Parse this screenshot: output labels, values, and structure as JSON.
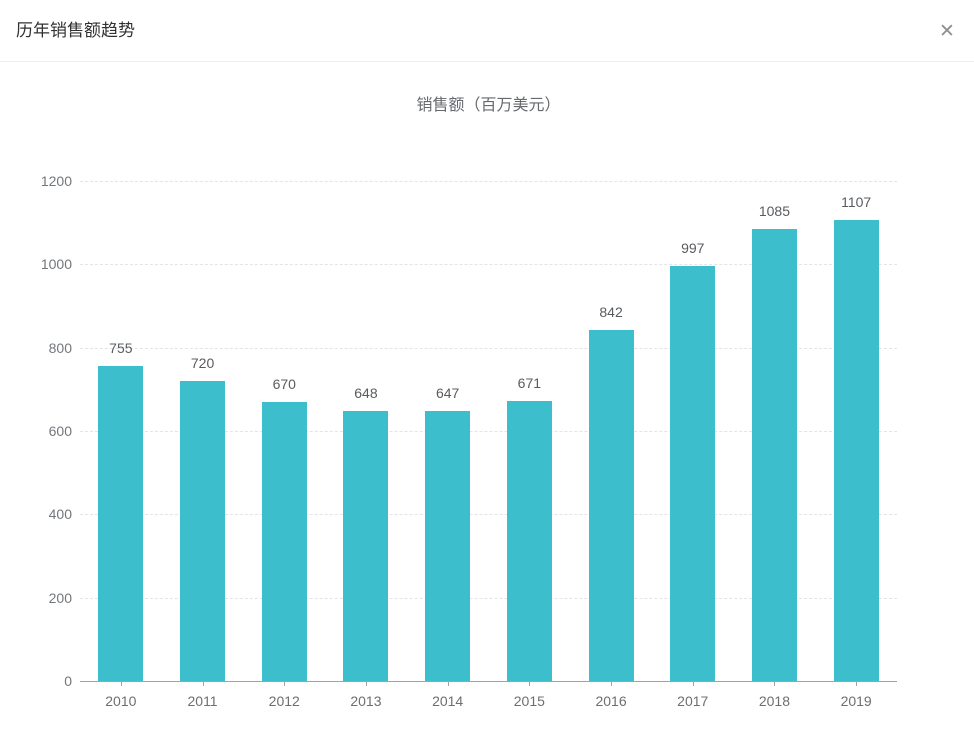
{
  "window": {
    "title": "历年销售额趋势",
    "close_icon": "✕"
  },
  "chart_data": {
    "type": "bar",
    "title": "销售额（百万美元）",
    "categories": [
      "2010",
      "2011",
      "2012",
      "2013",
      "2014",
      "2015",
      "2016",
      "2017",
      "2018",
      "2019"
    ],
    "values": [
      755,
      720,
      670,
      648,
      647,
      671,
      842,
      997,
      1085,
      1107
    ],
    "xlabel": "",
    "ylabel": "",
    "ylim": [
      0,
      1200
    ],
    "yticks": [
      0,
      200,
      400,
      600,
      800,
      1000,
      1200
    ],
    "grid": "horizontal-dashed",
    "legend": "none",
    "bar_color": "#3dbecd",
    "value_labels": "above-bars"
  }
}
